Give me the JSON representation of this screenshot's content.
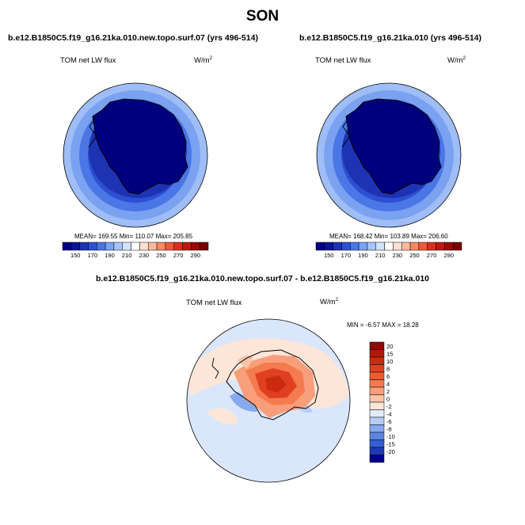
{
  "page": {
    "season": "SON",
    "colors": {
      "antarctica_fill": "#00007f",
      "ocean_light": "#c6dbff"
    }
  },
  "panels": [
    {
      "run": "b.e12.B1850C5.f19_g16.21ka.010.new.topo.surf.07 (yrs 496-514)",
      "variable": "TOM net LW flux",
      "units_base": "W/m",
      "units_exp": "2",
      "stats": "MEAN= 169.55 Min= 110.07 Max= 205.85",
      "colorbar": {
        "labels": [
          "150",
          "170",
          "190",
          "210",
          "230",
          "250",
          "270",
          "290"
        ],
        "colors": [
          "#00007f",
          "#0a1496",
          "#1e32b4",
          "#2d4fd2",
          "#4a76e6",
          "#7aa2f0",
          "#a8c4f8",
          "#d4e3fc",
          "#ffffff",
          "#fde0d0",
          "#f9b99c",
          "#f48a66",
          "#ec5a3a",
          "#d83020",
          "#bd1810",
          "#9a0a05",
          "#7a0000"
        ]
      },
      "chart_data": {
        "type": "heatmap",
        "title": "TOM net LW flux",
        "projection": "south polar stereographic",
        "units": "W/m2",
        "levels": [
          150,
          170,
          190,
          210,
          230,
          250,
          270,
          290
        ],
        "mean": 169.55,
        "min": 110.07,
        "max": 205.85
      }
    },
    {
      "run": "b.e12.B1850C5.f19_g16.21ka.010 (yrs 496-514)",
      "variable": "TOM net LW flux",
      "units_base": "W/m",
      "units_exp": "2",
      "stats": "MEAN= 168.42 Min= 103.89 Max= 206.60",
      "colorbar": {
        "labels": [
          "150",
          "170",
          "190",
          "210",
          "230",
          "250",
          "270",
          "290"
        ],
        "colors": [
          "#00007f",
          "#0a1496",
          "#1e32b4",
          "#2d4fd2",
          "#4a76e6",
          "#7aa2f0",
          "#a8c4f8",
          "#d4e3fc",
          "#ffffff",
          "#fde0d0",
          "#f9b99c",
          "#f48a66",
          "#ec5a3a",
          "#d83020",
          "#bd1810",
          "#9a0a05",
          "#7a0000"
        ]
      },
      "chart_data": {
        "type": "heatmap",
        "title": "TOM net LW flux",
        "projection": "south polar stereographic",
        "units": "W/m2",
        "levels": [
          150,
          170,
          190,
          210,
          230,
          250,
          270,
          290
        ],
        "mean": 168.42,
        "min": 103.89,
        "max": 206.6
      }
    }
  ],
  "diff": {
    "title": "b.e12.B1850C5.f19_g16.21ka.010.new.topo.surf.07 - b.e12.B1850C5.f19_g16.21ka.010",
    "variable": "TOM net LW flux",
    "units_base": "W/m",
    "units_exp": "2",
    "minmax": "MIN =  -6.57 MAX =  18.28",
    "colorbar": {
      "labels": [
        "20",
        "15",
        "10",
        "8",
        "6",
        "4",
        "2",
        "0",
        "-2",
        "-4",
        "-6",
        "-8",
        "-10",
        "-15",
        "-20"
      ],
      "colors": [
        "#8f0a00",
        "#b01a08",
        "#cc2a10",
        "#e04020",
        "#f05a30",
        "#f47a50",
        "#f89e7a",
        "#fcc4a8",
        "#fde6d8",
        "#e4ecfb",
        "#b8cdf4",
        "#86a8ec",
        "#5a86e2",
        "#3460d2",
        "#1c3ab6",
        "#00008f"
      ]
    },
    "chart_data": {
      "type": "heatmap",
      "title": "TOM net LW flux (difference)",
      "projection": "south polar stereographic",
      "units": "W/m2",
      "levels": [
        -20,
        -15,
        -10,
        -8,
        -6,
        -4,
        -2,
        0,
        2,
        4,
        6,
        8,
        10,
        15,
        20
      ],
      "min": -6.57,
      "max": 18.28
    }
  }
}
